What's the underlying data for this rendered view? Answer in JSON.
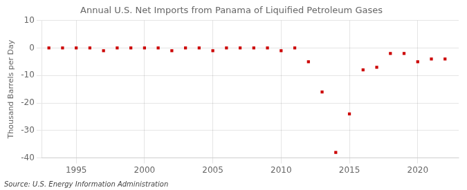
{
  "chart_data": {
    "type": "scatter",
    "title": "Annual U.S. Net Imports from Panama of Liquified Petroleum Gases",
    "ylabel": "Thousand Barrels per Day",
    "source": "Source: U.S. Energy Information Administration",
    "x": [
      1993,
      1994,
      1995,
      1996,
      1997,
      1998,
      1999,
      2000,
      2001,
      2002,
      2003,
      2004,
      2005,
      2006,
      2007,
      2008,
      2009,
      2010,
      2011,
      2012,
      2013,
      2014,
      2015,
      2016,
      2017,
      2018,
      2019,
      2020,
      2021,
      2022
    ],
    "values": [
      0,
      0,
      0,
      0,
      -1,
      0,
      0,
      0,
      0,
      -1,
      0,
      0,
      -1,
      0,
      0,
      0,
      0,
      -1,
      0,
      -5,
      -16,
      -38,
      -24,
      -8,
      -7,
      -2,
      -2,
      -5,
      -4,
      -4
    ],
    "color": "#cc0000",
    "marker": "square",
    "xlim": [
      1992.5,
      2023
    ],
    "xticks": [
      1995,
      2000,
      2005,
      2010,
      2015,
      2020
    ],
    "ylim": [
      -40,
      10
    ],
    "yticks": [
      -40,
      -30,
      -20,
      -10,
      0,
      10
    ],
    "grid": true
  }
}
